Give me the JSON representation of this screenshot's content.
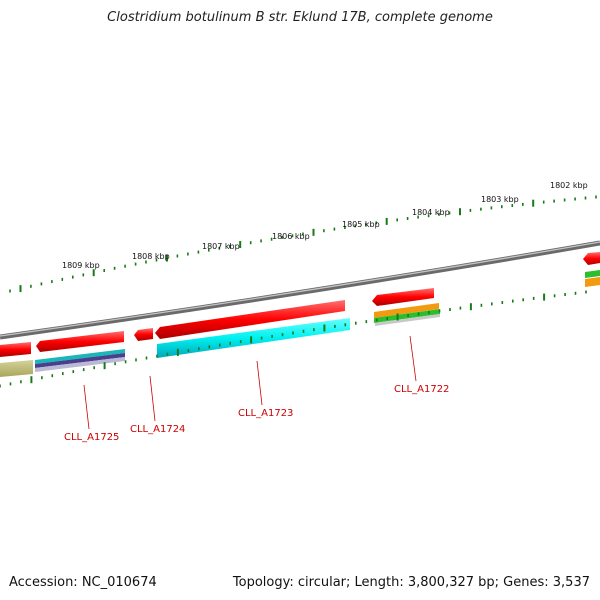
{
  "title": "Clostridium botulinum B str. Eklund 17B, complete genome",
  "accession": "Accession: NC_010674",
  "topology": "Topology: circular; Length: 3,800,327 bp; Genes: 3,537",
  "scale_labels": [
    "1809 kbp",
    "1808 kbp",
    "1807 kbp",
    "1806 kbp",
    "1805 kbp",
    "1804 kbp",
    "1803 kbp",
    "1802 kbp"
  ],
  "gene_labels": [
    "CLL_A1725",
    "CLL_A1724",
    "CLL_A1723",
    "CLL_A1722"
  ],
  "colors": {
    "cds": "#ff0000",
    "backbone": "#8a8a8a",
    "tick": "#1a7a1a",
    "label": "#cc0000"
  }
}
